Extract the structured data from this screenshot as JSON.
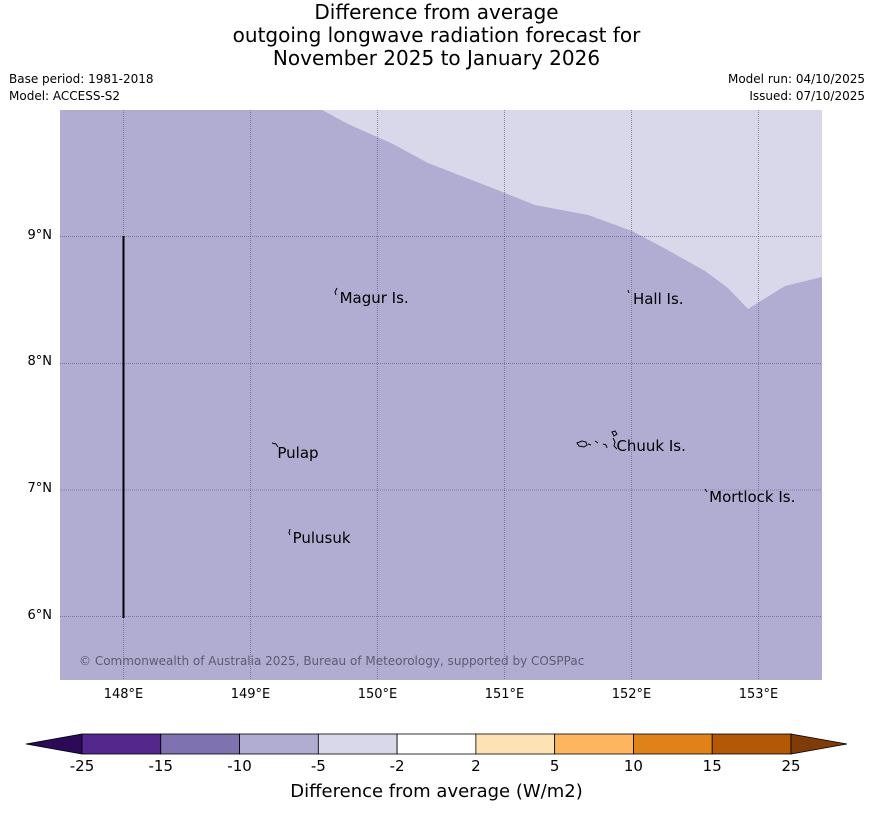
{
  "title": {
    "line1": "Difference from average",
    "line2": "outgoing longwave radiation forecast for",
    "line3": "November 2025 to January 2026"
  },
  "meta": {
    "base_period": "Base period: 1981-2018",
    "model": "Model: ACCESS-S2",
    "model_run": "Model run: 04/10/2025",
    "issued": "Issued: 07/10/2025"
  },
  "map": {
    "lon_range": [
      147.5,
      153.5
    ],
    "lat_range": [
      5.5,
      10.0
    ],
    "lat_ticks": [
      {
        "value": 9,
        "label": "9°N"
      },
      {
        "value": 8,
        "label": "8°N"
      },
      {
        "value": 7,
        "label": "7°N"
      },
      {
        "value": 6,
        "label": "6°N"
      }
    ],
    "lon_ticks": [
      {
        "value": 148,
        "label": "148°E"
      },
      {
        "value": 149,
        "label": "149°E"
      },
      {
        "value": 150,
        "label": "150°E"
      },
      {
        "value": 151,
        "label": "151°E"
      },
      {
        "value": 152,
        "label": "152°E"
      },
      {
        "value": 153,
        "label": "153°E"
      }
    ],
    "places": [
      {
        "name": "Magur Is.",
        "lon": 149.67,
        "lat": 8.57
      },
      {
        "name": "Hall Is.",
        "lon": 151.98,
        "lat": 8.56
      },
      {
        "name": "Pulap",
        "lon": 149.18,
        "lat": 7.35
      },
      {
        "name": "Chuuk Is.",
        "lon": 151.85,
        "lat": 7.4
      },
      {
        "name": "Mortlock Is.",
        "lon": 152.58,
        "lat": 7.0
      },
      {
        "name": "Pulusuk",
        "lon": 149.3,
        "lat": 6.68
      }
    ],
    "copyright": "© Commonwealth of Australia 2025, Bureau of Meteorology, supported by COSPPac",
    "colors": {
      "base_fill": "#b1acd2",
      "light_fill": "#d8d8ea",
      "grid": "#555577"
    }
  },
  "colorbar": {
    "label": "Difference from average (W/m2)",
    "ticks": [
      "-25",
      "-15",
      "-10",
      "-5",
      "-2",
      "2",
      "5",
      "10",
      "15",
      "25"
    ],
    "colors": [
      "#2d0a58",
      "#53278c",
      "#7e72b0",
      "#b1acd2",
      "#d8d8ea",
      "#ffffff",
      "#fde2b4",
      "#fdb55f",
      "#e0821a",
      "#b35806",
      "#7f3b08"
    ]
  }
}
